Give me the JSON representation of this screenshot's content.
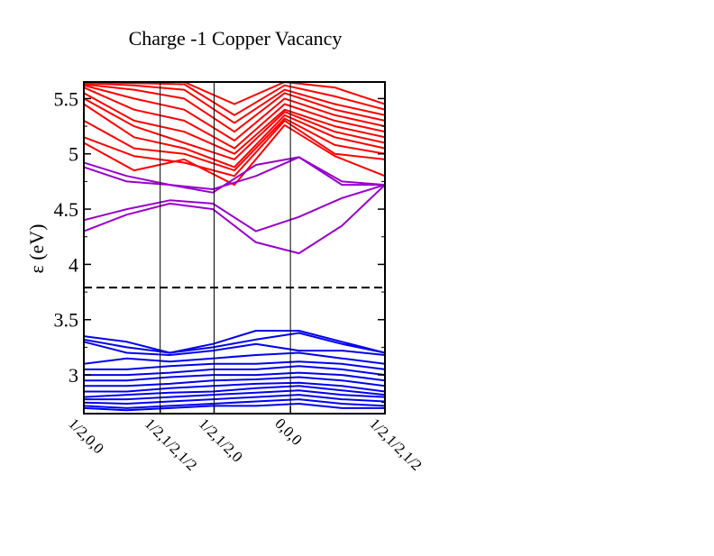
{
  "chart_data": {
    "type": "line",
    "title": "Charge -1 Copper Vacancy",
    "xlabel": "",
    "ylabel": "ε (eV)",
    "ylim": [
      2.65,
      5.65
    ],
    "xlim": [
      0,
      1
    ],
    "k_points": [
      {
        "label": "1/2,0,0",
        "x": 0.0
      },
      {
        "label": "1/2,1/2,1/2",
        "x": 0.2535
      },
      {
        "label": "1/2,1/2,0",
        "x": 0.4326
      },
      {
        "label": "0,0,0",
        "x": 0.6861
      },
      {
        "label": "1/2,1/2,1/2",
        "x": 1.0
      }
    ],
    "y_ticks": [
      {
        "label": "3",
        "value": 3.0
      },
      {
        "label": "3.5",
        "value": 3.5
      },
      {
        "label": "4",
        "value": 4.0
      },
      {
        "label": "4.5",
        "value": 4.5
      },
      {
        "label": "5",
        "value": 5.0
      },
      {
        "label": "5.5",
        "value": 5.5
      }
    ],
    "fermi_level": 3.79,
    "grid": "vertical lines at k-points",
    "colors": {
      "conduction": "#ff0000",
      "defect": "#9900cc",
      "valence": "#0000ee",
      "fermi": "#000000"
    },
    "band_groups": [
      {
        "group": "conduction",
        "color": "#ff0000",
        "bands": [
          [
            5.1,
            4.85,
            4.95,
            4.72,
            5.26,
            4.98,
            4.8
          ],
          [
            5.15,
            4.98,
            4.92,
            4.8,
            5.3,
            5.0,
            4.95
          ],
          [
            5.3,
            5.05,
            5.0,
            4.85,
            5.32,
            5.08,
            5.0
          ],
          [
            5.45,
            5.15,
            5.05,
            4.88,
            5.35,
            5.15,
            5.05
          ],
          [
            5.5,
            5.25,
            5.1,
            4.95,
            5.38,
            5.2,
            5.1
          ],
          [
            5.55,
            5.3,
            5.2,
            5.0,
            5.4,
            5.25,
            5.15
          ],
          [
            5.6,
            5.4,
            5.3,
            5.05,
            5.45,
            5.3,
            5.2
          ],
          [
            5.62,
            5.5,
            5.4,
            5.12,
            5.5,
            5.35,
            5.25
          ],
          [
            5.63,
            5.58,
            5.5,
            5.2,
            5.55,
            5.4,
            5.3
          ],
          [
            5.64,
            5.62,
            5.58,
            5.28,
            5.58,
            5.45,
            5.35
          ],
          [
            5.65,
            5.64,
            5.63,
            5.35,
            5.62,
            5.52,
            5.4
          ],
          [
            5.65,
            5.65,
            5.65,
            5.45,
            5.65,
            5.6,
            5.45
          ]
        ]
      },
      {
        "group": "defect",
        "color": "#9900cc",
        "bands": [
          [
            4.3,
            4.45,
            4.55,
            4.5,
            4.2,
            4.1,
            4.35,
            4.72
          ],
          [
            4.4,
            4.5,
            4.58,
            4.55,
            4.3,
            4.43,
            4.6,
            4.72
          ],
          [
            4.88,
            4.75,
            4.72,
            4.68,
            4.8,
            4.97,
            4.72,
            4.72
          ],
          [
            4.92,
            4.8,
            4.72,
            4.65,
            4.9,
            4.97,
            4.75,
            4.72
          ]
        ]
      },
      {
        "group": "valence",
        "color": "#0000ee",
        "bands": [
          [
            3.35,
            3.3,
            3.2,
            3.28,
            3.4,
            3.4,
            3.3,
            3.2
          ],
          [
            3.32,
            3.25,
            3.2,
            3.25,
            3.32,
            3.38,
            3.28,
            3.2
          ],
          [
            3.3,
            3.2,
            3.18,
            3.22,
            3.28,
            3.22,
            3.22,
            3.18
          ],
          [
            3.1,
            3.15,
            3.12,
            3.15,
            3.18,
            3.2,
            3.15,
            3.1
          ],
          [
            3.05,
            3.05,
            3.08,
            3.1,
            3.1,
            3.12,
            3.1,
            3.05
          ],
          [
            3.0,
            3.0,
            3.02,
            3.05,
            3.05,
            3.08,
            3.05,
            3.0
          ],
          [
            2.95,
            2.95,
            2.98,
            3.0,
            3.0,
            3.02,
            3.0,
            2.95
          ],
          [
            2.9,
            2.9,
            2.92,
            2.95,
            2.96,
            2.98,
            2.95,
            2.9
          ],
          [
            2.85,
            2.85,
            2.88,
            2.9,
            2.92,
            2.93,
            2.9,
            2.85
          ],
          [
            2.8,
            2.82,
            2.84,
            2.85,
            2.88,
            2.9,
            2.86,
            2.82
          ],
          [
            2.78,
            2.78,
            2.8,
            2.82,
            2.84,
            2.86,
            2.82,
            2.8
          ],
          [
            2.75,
            2.74,
            2.76,
            2.78,
            2.8,
            2.82,
            2.78,
            2.76
          ],
          [
            2.72,
            2.7,
            2.72,
            2.74,
            2.76,
            2.78,
            2.74,
            2.72
          ],
          [
            2.7,
            2.68,
            2.7,
            2.72,
            2.72,
            2.74,
            2.7,
            2.7
          ]
        ]
      }
    ]
  }
}
